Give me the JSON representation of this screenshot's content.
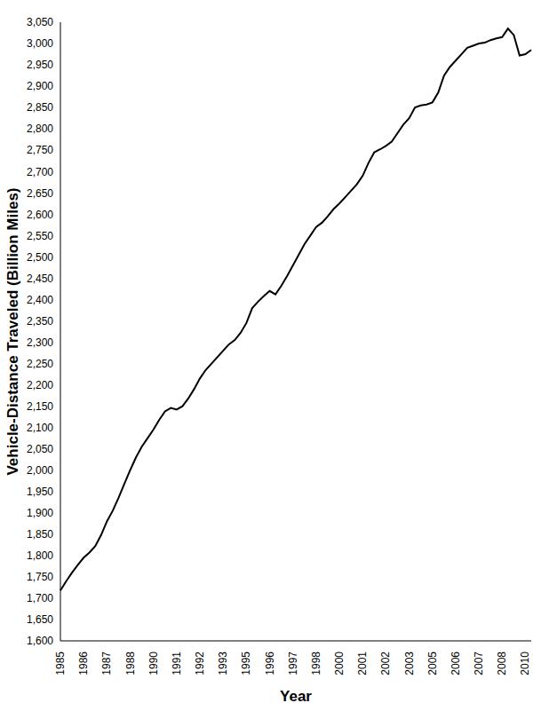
{
  "chart_data": {
    "type": "line",
    "x_label": "Year",
    "y_label": "Vehicle-Distance Traveled (Billion Miles)",
    "categories": [
      "1985",
      null,
      null,
      null,
      "1986",
      null,
      null,
      null,
      "1987",
      null,
      null,
      null,
      "1988",
      null,
      null,
      null,
      "1990",
      null,
      null,
      null,
      "1991",
      null,
      null,
      null,
      "1992",
      null,
      null,
      null,
      "1993",
      null,
      null,
      null,
      "1995",
      null,
      null,
      null,
      "1996",
      null,
      null,
      null,
      "1997",
      null,
      null,
      null,
      "1998",
      null,
      null,
      null,
      "2000",
      null,
      null,
      null,
      "2001",
      null,
      null,
      null,
      "2002",
      null,
      null,
      null,
      "2003",
      null,
      null,
      null,
      "2005",
      null,
      null,
      null,
      "2006",
      null,
      null,
      null,
      "2007",
      null,
      null,
      null,
      "2008",
      null,
      null,
      null,
      "2010",
      null
    ],
    "values": [
      1718,
      1740,
      1760,
      1778,
      1795,
      1807,
      1822,
      1848,
      1880,
      1905,
      1935,
      1968,
      2000,
      2030,
      2055,
      2075,
      2095,
      2118,
      2138,
      2146,
      2142,
      2150,
      2168,
      2190,
      2215,
      2235,
      2250,
      2265,
      2280,
      2295,
      2305,
      2322,
      2345,
      2380,
      2395,
      2408,
      2420,
      2412,
      2432,
      2455,
      2480,
      2505,
      2530,
      2550,
      2570,
      2580,
      2595,
      2612,
      2625,
      2640,
      2655,
      2670,
      2690,
      2720,
      2745,
      2752,
      2760,
      2770,
      2790,
      2810,
      2825,
      2850,
      2855,
      2857,
      2862,
      2885,
      2925,
      2945,
      2960,
      2975,
      2990,
      2995,
      3000,
      3002,
      3008,
      3012,
      3015,
      3035,
      3020,
      2972,
      2975,
      2985
    ],
    "color": "#000000",
    "ylim": [
      1600,
      3050
    ],
    "yticks": [
      {
        "value": 1600,
        "label": "1,600"
      },
      {
        "value": 1650,
        "label": "1,650"
      },
      {
        "value": 1700,
        "label": "1,700"
      },
      {
        "value": 1750,
        "label": "1,750"
      },
      {
        "value": 1800,
        "label": "1,800"
      },
      {
        "value": 1850,
        "label": "1,850"
      },
      {
        "value": 1900,
        "label": "1,900"
      },
      {
        "value": 1950,
        "label": "1,950"
      },
      {
        "value": 2000,
        "label": "2,000"
      },
      {
        "value": 2050,
        "label": "2,050"
      },
      {
        "value": 2100,
        "label": "2,100"
      },
      {
        "value": 2150,
        "label": "2,150"
      },
      {
        "value": 2200,
        "label": "2,200"
      },
      {
        "value": 2250,
        "label": "2,250"
      },
      {
        "value": 2300,
        "label": "2,300"
      },
      {
        "value": 2350,
        "label": "2,350"
      },
      {
        "value": 2400,
        "label": "2,400"
      },
      {
        "value": 2450,
        "label": "2,450"
      },
      {
        "value": 2500,
        "label": "2,500"
      },
      {
        "value": 2550,
        "label": "2,550"
      },
      {
        "value": 2600,
        "label": "2,600"
      },
      {
        "value": 2650,
        "label": "2,650"
      },
      {
        "value": 2700,
        "label": "2,700"
      },
      {
        "value": 2750,
        "label": "2,750"
      },
      {
        "value": 2800,
        "label": "2,800"
      },
      {
        "value": 2850,
        "label": "2,850"
      },
      {
        "value": 2900,
        "label": "2,900"
      },
      {
        "value": 2950,
        "label": "2,950"
      },
      {
        "value": 3000,
        "label": "3,000"
      },
      {
        "value": 3050,
        "label": "3,050"
      }
    ],
    "grid": false
  }
}
